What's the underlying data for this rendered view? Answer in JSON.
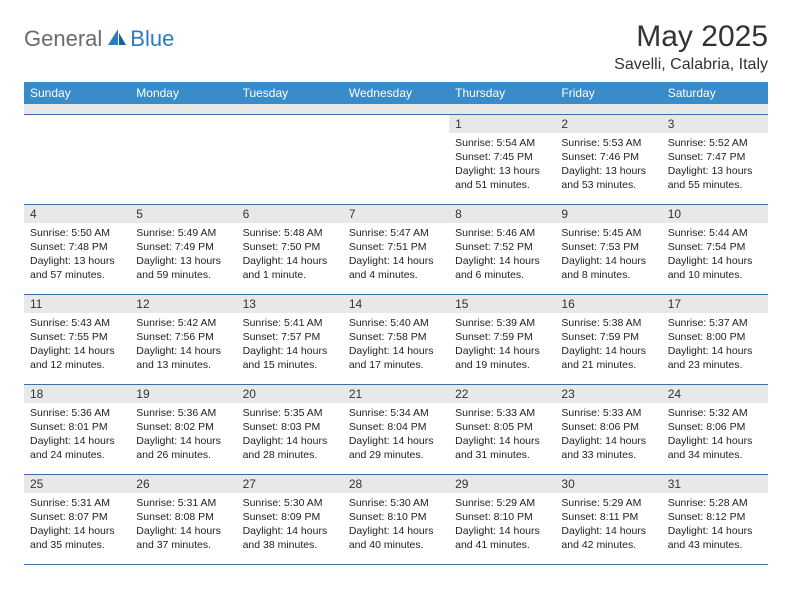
{
  "brand": {
    "part1": "General",
    "part2": "Blue"
  },
  "title": "May 2025",
  "location": "Savelli, Calabria, Italy",
  "colors": {
    "header_bg": "#3a8bc9",
    "header_text": "#ffffff",
    "stripe_bg": "#e8e8e8",
    "rule": "#3a6fa8",
    "logo_gray": "#6b6b6b",
    "logo_blue": "#2b7bbf"
  },
  "day_names": [
    "Sunday",
    "Monday",
    "Tuesday",
    "Wednesday",
    "Thursday",
    "Friday",
    "Saturday"
  ],
  "weeks": [
    [
      {
        "n": "",
        "sr": "",
        "ss": "",
        "dl": ""
      },
      {
        "n": "",
        "sr": "",
        "ss": "",
        "dl": ""
      },
      {
        "n": "",
        "sr": "",
        "ss": "",
        "dl": ""
      },
      {
        "n": "",
        "sr": "",
        "ss": "",
        "dl": ""
      },
      {
        "n": "1",
        "sr": "Sunrise: 5:54 AM",
        "ss": "Sunset: 7:45 PM",
        "dl": "Daylight: 13 hours and 51 minutes."
      },
      {
        "n": "2",
        "sr": "Sunrise: 5:53 AM",
        "ss": "Sunset: 7:46 PM",
        "dl": "Daylight: 13 hours and 53 minutes."
      },
      {
        "n": "3",
        "sr": "Sunrise: 5:52 AM",
        "ss": "Sunset: 7:47 PM",
        "dl": "Daylight: 13 hours and 55 minutes."
      }
    ],
    [
      {
        "n": "4",
        "sr": "Sunrise: 5:50 AM",
        "ss": "Sunset: 7:48 PM",
        "dl": "Daylight: 13 hours and 57 minutes."
      },
      {
        "n": "5",
        "sr": "Sunrise: 5:49 AM",
        "ss": "Sunset: 7:49 PM",
        "dl": "Daylight: 13 hours and 59 minutes."
      },
      {
        "n": "6",
        "sr": "Sunrise: 5:48 AM",
        "ss": "Sunset: 7:50 PM",
        "dl": "Daylight: 14 hours and 1 minute."
      },
      {
        "n": "7",
        "sr": "Sunrise: 5:47 AM",
        "ss": "Sunset: 7:51 PM",
        "dl": "Daylight: 14 hours and 4 minutes."
      },
      {
        "n": "8",
        "sr": "Sunrise: 5:46 AM",
        "ss": "Sunset: 7:52 PM",
        "dl": "Daylight: 14 hours and 6 minutes."
      },
      {
        "n": "9",
        "sr": "Sunrise: 5:45 AM",
        "ss": "Sunset: 7:53 PM",
        "dl": "Daylight: 14 hours and 8 minutes."
      },
      {
        "n": "10",
        "sr": "Sunrise: 5:44 AM",
        "ss": "Sunset: 7:54 PM",
        "dl": "Daylight: 14 hours and 10 minutes."
      }
    ],
    [
      {
        "n": "11",
        "sr": "Sunrise: 5:43 AM",
        "ss": "Sunset: 7:55 PM",
        "dl": "Daylight: 14 hours and 12 minutes."
      },
      {
        "n": "12",
        "sr": "Sunrise: 5:42 AM",
        "ss": "Sunset: 7:56 PM",
        "dl": "Daylight: 14 hours and 13 minutes."
      },
      {
        "n": "13",
        "sr": "Sunrise: 5:41 AM",
        "ss": "Sunset: 7:57 PM",
        "dl": "Daylight: 14 hours and 15 minutes."
      },
      {
        "n": "14",
        "sr": "Sunrise: 5:40 AM",
        "ss": "Sunset: 7:58 PM",
        "dl": "Daylight: 14 hours and 17 minutes."
      },
      {
        "n": "15",
        "sr": "Sunrise: 5:39 AM",
        "ss": "Sunset: 7:59 PM",
        "dl": "Daylight: 14 hours and 19 minutes."
      },
      {
        "n": "16",
        "sr": "Sunrise: 5:38 AM",
        "ss": "Sunset: 7:59 PM",
        "dl": "Daylight: 14 hours and 21 minutes."
      },
      {
        "n": "17",
        "sr": "Sunrise: 5:37 AM",
        "ss": "Sunset: 8:00 PM",
        "dl": "Daylight: 14 hours and 23 minutes."
      }
    ],
    [
      {
        "n": "18",
        "sr": "Sunrise: 5:36 AM",
        "ss": "Sunset: 8:01 PM",
        "dl": "Daylight: 14 hours and 24 minutes."
      },
      {
        "n": "19",
        "sr": "Sunrise: 5:36 AM",
        "ss": "Sunset: 8:02 PM",
        "dl": "Daylight: 14 hours and 26 minutes."
      },
      {
        "n": "20",
        "sr": "Sunrise: 5:35 AM",
        "ss": "Sunset: 8:03 PM",
        "dl": "Daylight: 14 hours and 28 minutes."
      },
      {
        "n": "21",
        "sr": "Sunrise: 5:34 AM",
        "ss": "Sunset: 8:04 PM",
        "dl": "Daylight: 14 hours and 29 minutes."
      },
      {
        "n": "22",
        "sr": "Sunrise: 5:33 AM",
        "ss": "Sunset: 8:05 PM",
        "dl": "Daylight: 14 hours and 31 minutes."
      },
      {
        "n": "23",
        "sr": "Sunrise: 5:33 AM",
        "ss": "Sunset: 8:06 PM",
        "dl": "Daylight: 14 hours and 33 minutes."
      },
      {
        "n": "24",
        "sr": "Sunrise: 5:32 AM",
        "ss": "Sunset: 8:06 PM",
        "dl": "Daylight: 14 hours and 34 minutes."
      }
    ],
    [
      {
        "n": "25",
        "sr": "Sunrise: 5:31 AM",
        "ss": "Sunset: 8:07 PM",
        "dl": "Daylight: 14 hours and 35 minutes."
      },
      {
        "n": "26",
        "sr": "Sunrise: 5:31 AM",
        "ss": "Sunset: 8:08 PM",
        "dl": "Daylight: 14 hours and 37 minutes."
      },
      {
        "n": "27",
        "sr": "Sunrise: 5:30 AM",
        "ss": "Sunset: 8:09 PM",
        "dl": "Daylight: 14 hours and 38 minutes."
      },
      {
        "n": "28",
        "sr": "Sunrise: 5:30 AM",
        "ss": "Sunset: 8:10 PM",
        "dl": "Daylight: 14 hours and 40 minutes."
      },
      {
        "n": "29",
        "sr": "Sunrise: 5:29 AM",
        "ss": "Sunset: 8:10 PM",
        "dl": "Daylight: 14 hours and 41 minutes."
      },
      {
        "n": "30",
        "sr": "Sunrise: 5:29 AM",
        "ss": "Sunset: 8:11 PM",
        "dl": "Daylight: 14 hours and 42 minutes."
      },
      {
        "n": "31",
        "sr": "Sunrise: 5:28 AM",
        "ss": "Sunset: 8:12 PM",
        "dl": "Daylight: 14 hours and 43 minutes."
      }
    ]
  ]
}
